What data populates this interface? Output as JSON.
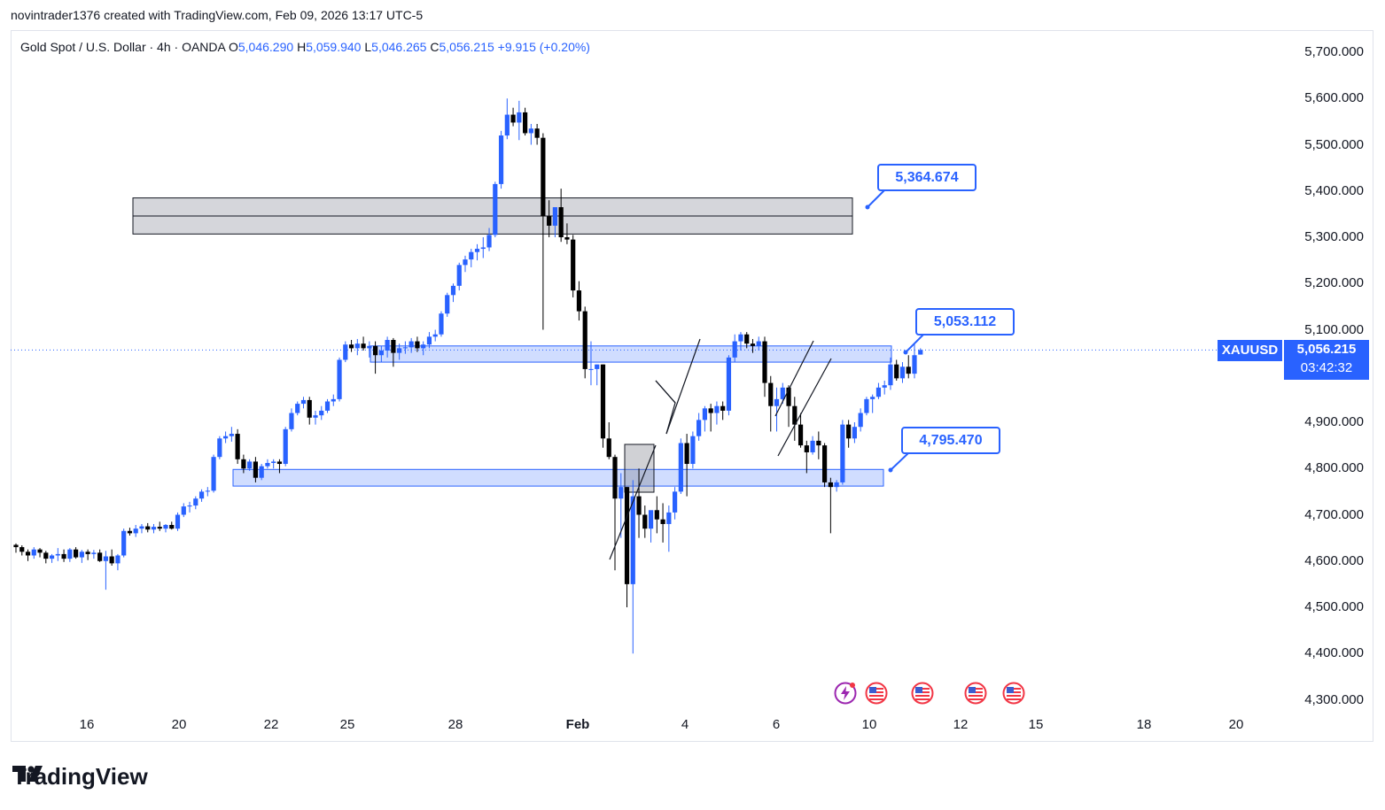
{
  "header": {
    "author_line": "novintrader1376 created with TradingView.com, Feb 09, 2026 13:17 UTC-5"
  },
  "legend": {
    "instrument": "Gold Spot / U.S. Dollar · 4h · OANDA",
    "o_label": "O",
    "o_value": "5,046.290",
    "h_label": "H",
    "h_value": "5,059.940",
    "l_label": "L",
    "l_value": "5,046.265",
    "c_label": "C",
    "c_value": "5,056.215",
    "change": "+9.915 (+0.20%)"
  },
  "symbol_tag": "XAUUSD",
  "last_price": "5,056.215",
  "countdown": "03:42:32",
  "callouts": [
    "5,364.674",
    "5,053.112",
    "4,795.470"
  ],
  "footer": {
    "brand": "TradingView"
  },
  "icons": [
    "tradingview-logo-icon",
    "bolt-event-icon",
    "us-flag-icon"
  ],
  "colors": {
    "up": "#2962ff",
    "down": "#000000",
    "zone_gray": "#d1d4dc",
    "zone_blue": "#c9d8fb",
    "accent": "#2962ff"
  },
  "chart_data": {
    "type": "candlestick",
    "y_ticks": [
      "5,700.000",
      "5,600.000",
      "5,500.000",
      "5,400.000",
      "5,300.000",
      "5,200.000",
      "5,100.000",
      "4,900.000",
      "4,800.000",
      "4,700.000",
      "4,600.000",
      "4,500.000",
      "4,400.000",
      "4,300.000"
    ],
    "x_ticks": [
      "16",
      "20",
      "22",
      "25",
      "28",
      "Feb",
      "4",
      "6",
      "10",
      "12",
      "15",
      "18",
      "20"
    ],
    "ylim": [
      4270,
      5740
    ],
    "zones": [
      {
        "kind": "supply",
        "top": 5385,
        "bottom": 5307,
        "color": "gray"
      },
      {
        "kind": "resistance",
        "top": 5065,
        "bottom": 5030,
        "color": "blue"
      },
      {
        "kind": "support",
        "top": 4798,
        "bottom": 4762,
        "color": "blue"
      }
    ],
    "candles": [
      [
        4635,
        4638,
        4618,
        4630
      ],
      [
        4630,
        4634,
        4612,
        4620
      ],
      [
        4620,
        4625,
        4600,
        4612
      ],
      [
        4612,
        4630,
        4605,
        4625
      ],
      [
        4625,
        4628,
        4608,
        4618
      ],
      [
        4618,
        4622,
        4595,
        4605
      ],
      [
        4605,
        4615,
        4596,
        4612
      ],
      [
        4612,
        4628,
        4600,
        4615
      ],
      [
        4615,
        4625,
        4598,
        4605
      ],
      [
        4605,
        4628,
        4598,
        4625
      ],
      [
        4625,
        4630,
        4605,
        4608
      ],
      [
        4608,
        4624,
        4596,
        4620
      ],
      [
        4620,
        4625,
        4602,
        4615
      ],
      [
        4615,
        4624,
        4605,
        4618
      ],
      [
        4618,
        4625,
        4598,
        4600
      ],
      [
        4600,
        4622,
        4538,
        4610
      ],
      [
        4610,
        4625,
        4590,
        4595
      ],
      [
        4595,
        4615,
        4580,
        4612
      ],
      [
        4612,
        4670,
        4608,
        4665
      ],
      [
        4665,
        4672,
        4655,
        4660
      ],
      [
        4660,
        4678,
        4652,
        4670
      ],
      [
        4670,
        4680,
        4660,
        4675
      ],
      [
        4675,
        4682,
        4662,
        4668
      ],
      [
        4668,
        4680,
        4660,
        4674
      ],
      [
        4674,
        4685,
        4665,
        4670
      ],
      [
        4670,
        4680,
        4662,
        4678
      ],
      [
        4678,
        4685,
        4668,
        4670
      ],
      [
        4670,
        4705,
        4665,
        4700
      ],
      [
        4700,
        4725,
        4695,
        4718
      ],
      [
        4718,
        4728,
        4705,
        4720
      ],
      [
        4720,
        4740,
        4712,
        4735
      ],
      [
        4735,
        4755,
        4728,
        4750
      ],
      [
        4750,
        4760,
        4740,
        4752
      ],
      [
        4752,
        4830,
        4748,
        4825
      ],
      [
        4825,
        4870,
        4820,
        4865
      ],
      [
        4865,
        4880,
        4855,
        4870
      ],
      [
        4870,
        4890,
        4858,
        4875
      ],
      [
        4875,
        4885,
        4810,
        4820
      ],
      [
        4820,
        4830,
        4790,
        4800
      ],
      [
        4800,
        4820,
        4795,
        4815
      ],
      [
        4815,
        4825,
        4770,
        4780
      ],
      [
        4780,
        4810,
        4775,
        4805
      ],
      [
        4805,
        4820,
        4800,
        4812
      ],
      [
        4812,
        4820,
        4800,
        4815
      ],
      [
        4815,
        4820,
        4790,
        4810
      ],
      [
        4810,
        4890,
        4805,
        4885
      ],
      [
        4885,
        4930,
        4880,
        4920
      ],
      [
        4920,
        4945,
        4915,
        4940
      ],
      [
        4940,
        4955,
        4930,
        4948
      ],
      [
        4948,
        4955,
        4895,
        4910
      ],
      [
        4910,
        4925,
        4895,
        4915
      ],
      [
        4915,
        4935,
        4905,
        4925
      ],
      [
        4925,
        4950,
        4920,
        4945
      ],
      [
        4945,
        4960,
        4935,
        4950
      ],
      [
        4950,
        5040,
        4945,
        5035
      ],
      [
        5035,
        5075,
        5030,
        5068
      ],
      [
        5068,
        5078,
        5052,
        5060
      ],
      [
        5060,
        5080,
        5045,
        5070
      ],
      [
        5070,
        5085,
        5055,
        5060
      ],
      [
        5060,
        5075,
        5040,
        5065
      ],
      [
        5065,
        5075,
        5005,
        5045
      ],
      [
        5045,
        5065,
        5030,
        5055
      ],
      [
        5055,
        5085,
        5040,
        5078
      ],
      [
        5078,
        5082,
        5020,
        5050
      ],
      [
        5050,
        5070,
        5035,
        5060
      ],
      [
        5060,
        5075,
        5048,
        5062
      ],
      [
        5062,
        5082,
        5050,
        5075
      ],
      [
        5075,
        5085,
        5052,
        5060
      ],
      [
        5060,
        5075,
        5045,
        5068
      ],
      [
        5068,
        5095,
        5060,
        5085
      ],
      [
        5085,
        5100,
        5075,
        5090
      ],
      [
        5090,
        5140,
        5085,
        5135
      ],
      [
        5135,
        5180,
        5128,
        5175
      ],
      [
        5175,
        5200,
        5160,
        5195
      ],
      [
        5195,
        5245,
        5185,
        5240
      ],
      [
        5240,
        5260,
        5225,
        5252
      ],
      [
        5252,
        5275,
        5235,
        5268
      ],
      [
        5268,
        5285,
        5250,
        5275
      ],
      [
        5275,
        5300,
        5255,
        5278
      ],
      [
        5278,
        5320,
        5270,
        5305
      ],
      [
        5305,
        5420,
        5300,
        5415
      ],
      [
        5415,
        5530,
        5405,
        5520
      ],
      [
        5520,
        5600,
        5512,
        5565
      ],
      [
        5565,
        5580,
        5540,
        5548
      ],
      [
        5548,
        5595,
        5510,
        5570
      ],
      [
        5570,
        5580,
        5520,
        5525
      ],
      [
        5525,
        5545,
        5500,
        5535
      ],
      [
        5535,
        5545,
        5500,
        5515
      ],
      [
        5515,
        5525,
        5100,
        5345
      ],
      [
        5345,
        5380,
        5300,
        5325
      ],
      [
        5325,
        5365,
        5300,
        5365
      ],
      [
        5365,
        5405,
        5290,
        5300
      ],
      [
        5300,
        5330,
        5285,
        5295
      ],
      [
        5295,
        5305,
        5170,
        5185
      ],
      [
        5185,
        5205,
        5120,
        5140
      ],
      [
        5140,
        5150,
        4995,
        5015
      ],
      [
        5015,
        5075,
        4980,
        5015
      ],
      [
        5015,
        5025,
        4980,
        5025
      ],
      [
        5025,
        5025,
        4845,
        4865
      ],
      [
        4865,
        4900,
        4820,
        4825
      ],
      [
        4825,
        4830,
        4580,
        4735
      ],
      [
        4735,
        4790,
        4650,
        4760
      ],
      [
        4760,
        4760,
        4500,
        4550
      ],
      [
        4550,
        4775,
        4400,
        4740
      ],
      [
        4740,
        4800,
        4650,
        4700
      ],
      [
        4700,
        4720,
        4650,
        4670
      ],
      [
        4670,
        4700,
        4640,
        4710
      ],
      [
        4710,
        4740,
        4660,
        4690
      ],
      [
        4690,
        4725,
        4640,
        4680
      ],
      [
        4680,
        4720,
        4620,
        4705
      ],
      [
        4705,
        4760,
        4690,
        4750
      ],
      [
        4750,
        4865,
        4745,
        4855
      ],
      [
        4855,
        4875,
        4740,
        4810
      ],
      [
        4810,
        4880,
        4800,
        4870
      ],
      [
        4870,
        4920,
        4860,
        4905
      ],
      [
        4905,
        4935,
        4880,
        4930
      ],
      [
        4930,
        4940,
        4880,
        4920
      ],
      [
        4920,
        4945,
        4895,
        4935
      ],
      [
        4935,
        4945,
        4905,
        4925
      ],
      [
        4925,
        5045,
        4915,
        5040
      ],
      [
        5040,
        5090,
        5030,
        5075
      ],
      [
        5075,
        5095,
        5055,
        5090
      ],
      [
        5090,
        5095,
        5060,
        5070
      ],
      [
        5070,
        5080,
        5050,
        5065
      ],
      [
        5065,
        5085,
        5055,
        5075
      ],
      [
        5075,
        5085,
        4955,
        4985
      ],
      [
        4985,
        5000,
        4880,
        4935
      ],
      [
        4935,
        4975,
        4880,
        4950
      ],
      [
        4950,
        4985,
        4940,
        4975
      ],
      [
        4975,
        4980,
        4890,
        4935
      ],
      [
        4935,
        4955,
        4860,
        4895
      ],
      [
        4895,
        4920,
        4845,
        4850
      ],
      [
        4850,
        4860,
        4790,
        4835
      ],
      [
        4835,
        4870,
        4830,
        4860
      ],
      [
        4860,
        4880,
        4820,
        4850
      ],
      [
        4850,
        4855,
        4760,
        4770
      ],
      [
        4770,
        4780,
        4660,
        4760
      ],
      [
        4760,
        4775,
        4750,
        4770
      ],
      [
        4770,
        4905,
        4765,
        4895
      ],
      [
        4895,
        4905,
        4845,
        4865
      ],
      [
        4865,
        4900,
        4855,
        4890
      ],
      [
        4890,
        4930,
        4880,
        4920
      ],
      [
        4920,
        4955,
        4915,
        4950
      ],
      [
        4950,
        4960,
        4920,
        4955
      ],
      [
        4955,
        4985,
        4950,
        4975
      ],
      [
        4975,
        4990,
        4960,
        4980
      ],
      [
        4980,
        5040,
        4970,
        5025
      ],
      [
        5025,
        5035,
        4990,
        4995
      ],
      [
        4995,
        5030,
        4985,
        5020
      ],
      [
        5020,
        5045,
        4995,
        5005
      ],
      [
        5005,
        5070,
        4995,
        5045
      ],
      [
        5046.29,
        5059.94,
        5046.265,
        5056.215
      ]
    ]
  }
}
